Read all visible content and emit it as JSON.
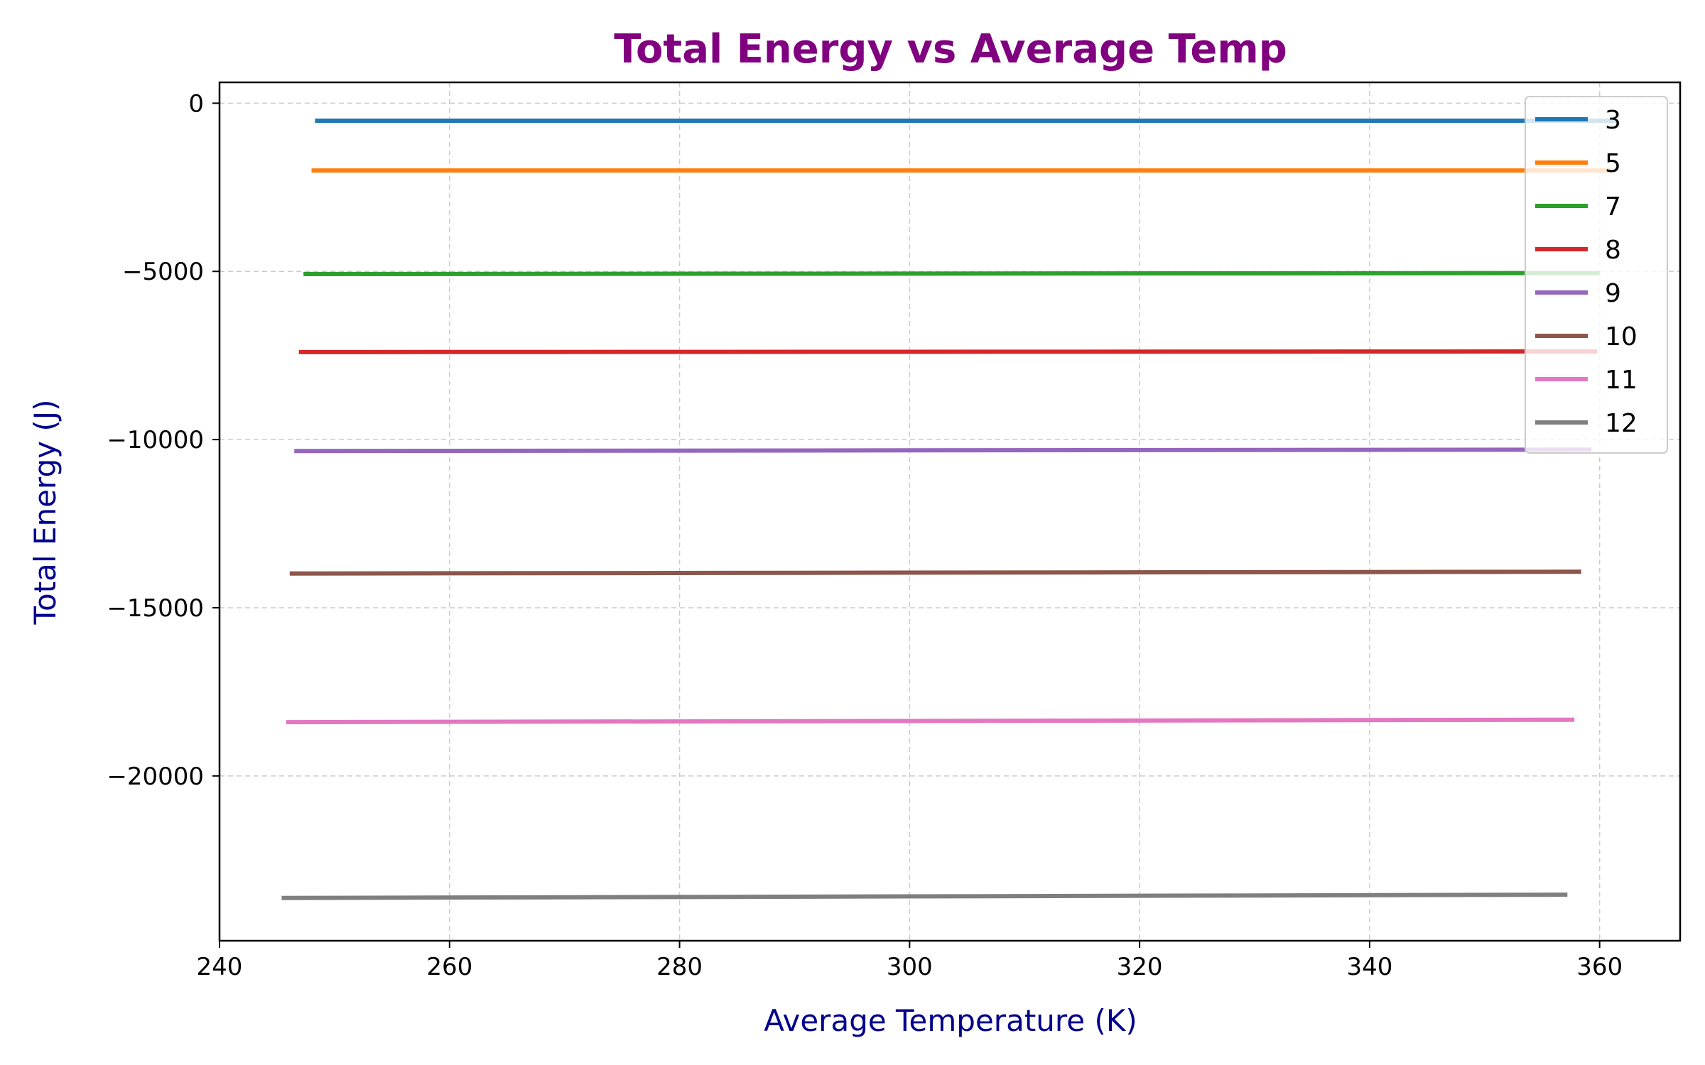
{
  "chart_data": {
    "type": "line",
    "title": "Total Energy vs Average Temp",
    "xlabel": "Average Temperature (K)",
    "ylabel": "Total Energy (J)",
    "xlim": [
      240,
      367
    ],
    "ylim": [
      -24900,
      620
    ],
    "xticks": [
      240,
      260,
      280,
      300,
      320,
      340,
      360
    ],
    "yticks": [
      0,
      -5000,
      -10000,
      -15000,
      -20000
    ],
    "ytick_labels": [
      "0",
      "−5000",
      "−10000",
      "−15000",
      "−20000"
    ],
    "grid": true,
    "legend_position": "top-right",
    "colors": {
      "title": "#800080",
      "axis_title": "#00008b",
      "grid": "#cccccc"
    },
    "series": [
      {
        "name": "3",
        "color": "#1f77b4",
        "x": [
          248.3,
          361.5
        ],
        "y": [
          -520,
          -520
        ]
      },
      {
        "name": "5",
        "color": "#ff7f0e",
        "x": [
          248.0,
          361.0
        ],
        "y": [
          -2000,
          -2000
        ]
      },
      {
        "name": "7",
        "color": "#2ca02c",
        "x": [
          247.3,
          360.0
        ],
        "y": [
          -5080,
          -5050
        ]
      },
      {
        "name": "8",
        "color": "#d62728",
        "x": [
          246.9,
          359.8
        ],
        "y": [
          -7400,
          -7380
        ]
      },
      {
        "name": "9",
        "color": "#9467bd",
        "x": [
          246.5,
          359.3
        ],
        "y": [
          -10340,
          -10300
        ]
      },
      {
        "name": "10",
        "color": "#8c564b",
        "x": [
          246.1,
          358.4
        ],
        "y": [
          -13980,
          -13930
        ]
      },
      {
        "name": "11",
        "color": "#e377c2",
        "x": [
          245.8,
          357.8
        ],
        "y": [
          -18400,
          -18330
        ]
      },
      {
        "name": "12",
        "color": "#7f7f7f",
        "x": [
          245.4,
          357.2
        ],
        "y": [
          -23630,
          -23530
        ]
      }
    ]
  }
}
